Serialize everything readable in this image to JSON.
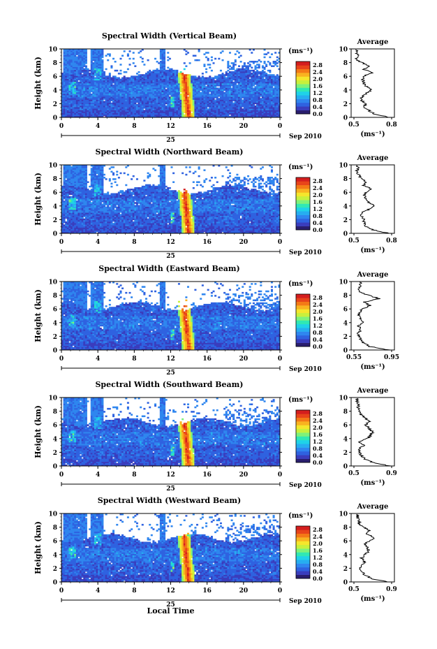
{
  "colorbar": {
    "unit": "(ms⁻¹)",
    "range": [
      0.0,
      3.0
    ],
    "colors": [
      "#2a1e6e",
      "#3a3dbd",
      "#2f62e0",
      "#2f86ef",
      "#26aef0",
      "#1fd2e8",
      "#30e8b4",
      "#7ef27a",
      "#c8f03c",
      "#f5e62c",
      "#f9b320",
      "#f47a16",
      "#e8441a",
      "#d41e1e"
    ]
  },
  "panels": [
    {
      "title": "Spectral Width (Vertical Beam)",
      "ylabel": "Height (km)",
      "y_ticks": [
        "0",
        "2",
        "4",
        "6",
        "8",
        "10"
      ],
      "x_ticks": [
        "0",
        "4",
        "8",
        "12",
        "16",
        "20",
        "0"
      ],
      "date_day": "25",
      "date_label": "Sep 2010",
      "colorbar_ticks": [
        "0.0",
        "0.4",
        "0.8",
        "1.2",
        "1.6",
        "2.0",
        "2.4",
        "2.8"
      ],
      "profile": {
        "title": "Average",
        "xlabel": "(ms⁻¹)",
        "x_ticks": [
          "0.5",
          "0.8"
        ],
        "xlim": [
          0.5,
          0.8
        ],
        "heights": [
          0,
          0.5,
          1,
          1.5,
          2,
          2.5,
          3,
          3.5,
          4,
          4.5,
          5,
          5.5,
          6,
          6.5,
          7,
          7.5,
          8,
          8.5,
          9,
          9.5
        ],
        "values": [
          0.78,
          0.66,
          0.62,
          0.58,
          0.6,
          0.56,
          0.56,
          0.6,
          0.64,
          0.6,
          0.58,
          0.57,
          0.58,
          0.64,
          0.58,
          0.63,
          0.56,
          0.52,
          0.53,
          0.52
        ]
      }
    },
    {
      "title": "Spectral Width (Northward Beam)",
      "ylabel": "Height (km)",
      "y_ticks": [
        "0",
        "2",
        "4",
        "6",
        "8",
        "10"
      ],
      "x_ticks": [
        "0",
        "4",
        "8",
        "12",
        "16",
        "20",
        "0"
      ],
      "date_day": "25",
      "date_label": "Sep 2010",
      "colorbar_ticks": [
        "0.0",
        "0.4",
        "0.8",
        "1.2",
        "1.6",
        "2.0",
        "2.4",
        "2.8"
      ],
      "profile": {
        "title": "Average",
        "xlabel": "(ms⁻¹)",
        "x_ticks": [
          "0.5",
          "0.8"
        ],
        "xlim": [
          0.5,
          0.8
        ],
        "heights": [
          0,
          0.5,
          1,
          1.5,
          2,
          2.5,
          3,
          3.5,
          4,
          4.5,
          5,
          5.5,
          6,
          6.5,
          7,
          7.5,
          8,
          8.5,
          9,
          9.5
        ],
        "values": [
          0.78,
          0.65,
          0.6,
          0.58,
          0.58,
          0.56,
          0.56,
          0.62,
          0.66,
          0.62,
          0.6,
          0.58,
          0.6,
          0.64,
          0.58,
          0.6,
          0.56,
          0.54,
          0.52,
          0.53
        ]
      }
    },
    {
      "title": "Spectral Width (Eastward Beam)",
      "ylabel": "Height (km)",
      "y_ticks": [
        "0",
        "2",
        "4",
        "6",
        "8",
        "10"
      ],
      "x_ticks": [
        "0",
        "4",
        "8",
        "12",
        "16",
        "20",
        "0"
      ],
      "date_day": "25",
      "date_label": "Sep 2010",
      "colorbar_ticks": [
        "0.0",
        "0.4",
        "0.8",
        "1.2",
        "1.6",
        "2.0",
        "2.4",
        "2.8"
      ],
      "profile": {
        "title": "Average",
        "xlabel": "(ms⁻¹)",
        "x_ticks": [
          "0.55",
          "0.95"
        ],
        "xlim": [
          0.55,
          0.95
        ],
        "heights": [
          0,
          0.5,
          1,
          1.5,
          2,
          2.5,
          3,
          3.5,
          4,
          4.5,
          5,
          5.5,
          6,
          6.5,
          7,
          7.5,
          8,
          8.5,
          9,
          9.5
        ],
        "values": [
          0.92,
          0.72,
          0.66,
          0.62,
          0.6,
          0.6,
          0.62,
          0.6,
          0.64,
          0.62,
          0.6,
          0.62,
          0.64,
          0.72,
          0.66,
          0.82,
          0.7,
          0.62,
          0.6,
          0.62
        ]
      }
    },
    {
      "title": "Spectral Width (Southward Beam)",
      "ylabel": "Height (km)",
      "y_ticks": [
        "0",
        "2",
        "4",
        "6",
        "8",
        "10"
      ],
      "x_ticks": [
        "0",
        "4",
        "8",
        "12",
        "16",
        "20",
        "0"
      ],
      "date_day": "25",
      "date_label": "Sep 2010",
      "colorbar_ticks": [
        "0.0",
        "0.4",
        "0.8",
        "1.2",
        "1.6",
        "2.0",
        "2.4",
        "2.8"
      ],
      "profile": {
        "title": "Average",
        "xlabel": "(ms⁻¹)",
        "x_ticks": [
          "0.5",
          "0.9"
        ],
        "xlim": [
          0.5,
          0.9
        ],
        "heights": [
          0,
          0.5,
          1,
          1.5,
          2,
          2.5,
          3,
          3.5,
          4,
          4.5,
          5,
          5.5,
          6,
          6.5,
          7,
          7.5,
          8,
          8.5,
          9,
          9.5
        ],
        "values": [
          0.88,
          0.7,
          0.62,
          0.58,
          0.56,
          0.55,
          0.6,
          0.56,
          0.64,
          0.68,
          0.7,
          0.66,
          0.62,
          0.66,
          0.62,
          0.58,
          0.56,
          0.54,
          0.55,
          0.53
        ]
      }
    },
    {
      "title": "Spectral Width (Westward Beam)",
      "ylabel": "Height (km)",
      "y_ticks": [
        "0",
        "2",
        "4",
        "6",
        "8",
        "10"
      ],
      "x_ticks": [
        "0",
        "4",
        "8",
        "12",
        "16",
        "20",
        "0"
      ],
      "date_day": "25",
      "date_label": "Sep 2010",
      "colorbar_ticks": [
        "0.0",
        "0.4",
        "0.8",
        "1.2",
        "1.6",
        "2.0",
        "2.4",
        "2.8"
      ],
      "profile": {
        "title": "Average",
        "xlabel": "(ms⁻¹)",
        "x_ticks": [
          "0.5",
          "0.9"
        ],
        "xlim": [
          0.5,
          0.9
        ],
        "heights": [
          0,
          0.5,
          1,
          1.5,
          2,
          2.5,
          3,
          3.5,
          4,
          4.5,
          5,
          5.5,
          6,
          6.5,
          7,
          7.5,
          8,
          8.5,
          9,
          9.5
        ],
        "values": [
          0.86,
          0.68,
          0.62,
          0.58,
          0.56,
          0.58,
          0.62,
          0.58,
          0.62,
          0.66,
          0.64,
          0.62,
          0.66,
          0.72,
          0.64,
          0.66,
          0.6,
          0.56,
          0.55,
          0.54
        ]
      }
    }
  ],
  "bottom_xlabel": "Local Time",
  "chart_data": {
    "type": "heatmap",
    "quantity": "Spectral Width",
    "unit": "ms⁻¹",
    "x_axis": {
      "label": "Local Time",
      "ticks": [
        "0",
        "4",
        "8",
        "12",
        "16",
        "20",
        "0"
      ],
      "range_hours": [
        0,
        24
      ]
    },
    "y_axis": {
      "label": "Height (km)",
      "range": [
        0,
        10
      ]
    },
    "color_range": [
      0.0,
      3.0
    ],
    "series": [
      {
        "name": "Vertical Beam"
      },
      {
        "name": "Northward Beam"
      },
      {
        "name": "Eastward Beam"
      },
      {
        "name": "Southward Beam"
      },
      {
        "name": "Westward Beam"
      }
    ]
  }
}
